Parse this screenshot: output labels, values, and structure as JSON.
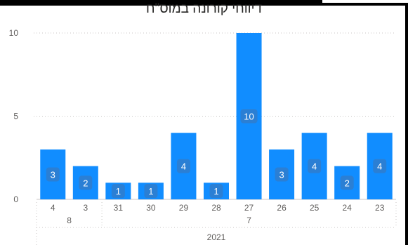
{
  "chart_data": {
    "type": "bar",
    "title": "דיווחי קורונה במוס\"ח",
    "categories": [
      "4",
      "3",
      "31",
      "30",
      "29",
      "28",
      "27",
      "26",
      "25",
      "24",
      "23"
    ],
    "month_groups": [
      {
        "label": "8",
        "count": 2
      },
      {
        "label": "7",
        "count": 9
      }
    ],
    "year_groups": [
      {
        "label": "2021",
        "count": 11
      }
    ],
    "values": [
      3,
      2,
      1,
      1,
      4,
      1,
      10,
      3,
      4,
      2,
      4
    ],
    "data_labels": [
      "3",
      "2",
      "1",
      "1",
      "4",
      "1",
      "10",
      "3",
      "4",
      "2",
      "4"
    ],
    "yticks": [
      "0",
      "5",
      "10"
    ],
    "ylim": [
      0,
      10
    ],
    "xlabel": "",
    "ylabel": "",
    "grid": true,
    "legend": "none",
    "bar_color": "#118DFF",
    "label_bg_color": "#2B7FD4"
  }
}
